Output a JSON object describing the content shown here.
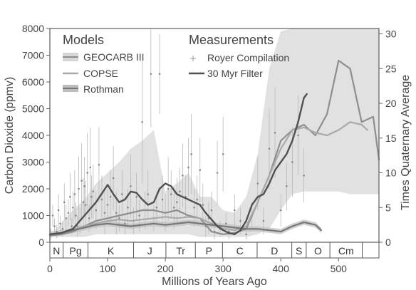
{
  "chart_data": {
    "type": "line",
    "xlabel": "Millions of Years Ago",
    "ylabel_left": "Carbon Dioxide (ppmv)",
    "ylabel_right": "Times Quaternary Average",
    "xlim": [
      0,
      570
    ],
    "ylim_left": [
      0,
      8000
    ],
    "ylim_right": [
      0,
      30.77
    ],
    "xticks": [
      0,
      100,
      200,
      300,
      400,
      500
    ],
    "yticks_left": [
      0,
      1000,
      2000,
      3000,
      4000,
      5000,
      6000,
      7000,
      8000
    ],
    "yticks_right": [
      0,
      5,
      10,
      15,
      20,
      25,
      30
    ],
    "grid": false,
    "legend": {
      "models_title": "Models",
      "measurements_title": "Measurements",
      "placement": "top-left"
    },
    "periods": [
      {
        "label": "N",
        "start": 0,
        "end": 23
      },
      {
        "label": "Pg",
        "start": 23,
        "end": 66
      },
      {
        "label": "K",
        "start": 66,
        "end": 145
      },
      {
        "label": "J",
        "start": 145,
        "end": 201
      },
      {
        "label": "Tr",
        "start": 201,
        "end": 252
      },
      {
        "label": "P",
        "start": 252,
        "end": 299
      },
      {
        "label": "C",
        "start": 299,
        "end": 359
      },
      {
        "label": "D",
        "start": 359,
        "end": 419
      },
      {
        "label": "S",
        "start": 419,
        "end": 444
      },
      {
        "label": "O",
        "start": 444,
        "end": 485
      },
      {
        "label": "Cm",
        "start": 485,
        "end": 541
      }
    ],
    "series": [
      {
        "name": "GEOCARB III",
        "color": "#8e8e8e",
        "kind": "band-line",
        "x": [
          0,
          20,
          40,
          60,
          80,
          100,
          120,
          140,
          160,
          180,
          200,
          220,
          240,
          260,
          280,
          300,
          320,
          340,
          360,
          380,
          400,
          420,
          440,
          460,
          480,
          500,
          520,
          540,
          560,
          570
        ],
        "values": [
          250,
          300,
          400,
          600,
          800,
          900,
          1000,
          1100,
          1200,
          1200,
          1100,
          1200,
          1000,
          900,
          400,
          300,
          350,
          500,
          1500,
          2500,
          3800,
          4200,
          4400,
          4000,
          4800,
          6800,
          6500,
          4500,
          4700,
          3100
        ],
        "upper": [
          300,
          700,
          1200,
          1600,
          2200,
          2600,
          3000,
          3500,
          3800,
          4200,
          1900,
          2200,
          2600,
          1700,
          1700,
          1200,
          1100,
          1700,
          3300,
          6500,
          7900,
          8000,
          8000,
          8000,
          8000,
          8000,
          8000,
          8000,
          8000,
          8000
        ],
        "lower": [
          200,
          200,
          200,
          200,
          300,
          300,
          300,
          300,
          300,
          300,
          300,
          300,
          300,
          200,
          200,
          200,
          200,
          200,
          300,
          500,
          1200,
          1800,
          1900,
          1900,
          1900,
          1900,
          1800,
          1800,
          1800,
          1800
        ]
      },
      {
        "name": "COPSE",
        "color": "#a9a9a9",
        "kind": "line",
        "x": [
          0,
          20,
          40,
          60,
          80,
          100,
          120,
          140,
          160,
          180,
          200,
          220,
          240,
          260,
          280,
          300,
          320,
          340,
          360,
          380,
          400,
          420,
          440,
          460,
          480,
          500,
          520,
          540,
          550
        ],
        "values": [
          300,
          350,
          450,
          600,
          700,
          800,
          850,
          800,
          850,
          900,
          950,
          900,
          950,
          900,
          700,
          500,
          450,
          600,
          1500,
          2500,
          3500,
          4200,
          4300,
          4100,
          4000,
          4200,
          4500,
          4400,
          4200
        ]
      },
      {
        "name": "Rothman",
        "color": "#777777",
        "kind": "band-line",
        "x": [
          0,
          20,
          40,
          60,
          80,
          100,
          120,
          140,
          160,
          180,
          200,
          220,
          240,
          260,
          280,
          300,
          320,
          340,
          360,
          380,
          400,
          420,
          440,
          460,
          470
        ],
        "values": [
          300,
          350,
          450,
          550,
          650,
          700,
          650,
          600,
          650,
          700,
          650,
          700,
          750,
          700,
          650,
          600,
          550,
          500,
          500,
          450,
          400,
          600,
          750,
          650,
          450
        ],
        "upper": [
          400,
          450,
          550,
          650,
          750,
          800,
          750,
          700,
          750,
          800,
          750,
          800,
          850,
          800,
          750,
          700,
          650,
          600,
          600,
          550,
          500,
          700,
          850,
          750,
          550
        ],
        "lower": [
          200,
          250,
          350,
          450,
          550,
          600,
          550,
          500,
          550,
          600,
          550,
          600,
          650,
          600,
          550,
          500,
          450,
          400,
          400,
          350,
          300,
          500,
          650,
          550,
          350
        ]
      },
      {
        "name": "30 Myr Filter",
        "color": "#505050",
        "kind": "line",
        "x": [
          0,
          20,
          40,
          60,
          80,
          100,
          110,
          120,
          130,
          140,
          150,
          160,
          170,
          180,
          190,
          200,
          210,
          220,
          230,
          240,
          250,
          260,
          270,
          280,
          290,
          300,
          310,
          320,
          330,
          340,
          350,
          360,
          370,
          380,
          390,
          400,
          410,
          420,
          430,
          440,
          445
        ],
        "values": [
          300,
          350,
          500,
          1000,
          1500,
          2150,
          1800,
          1500,
          1600,
          1900,
          1850,
          1600,
          1400,
          1500,
          2000,
          2200,
          2100,
          1800,
          1700,
          1600,
          1500,
          1400,
          1100,
          850,
          600,
          450,
          350,
          300,
          450,
          800,
          1400,
          1700,
          1800,
          2200,
          2700,
          3000,
          3300,
          3800,
          4500,
          5400,
          5550
        ]
      }
    ],
    "measurements": {
      "name": "Royer Compilation",
      "color": "#888888",
      "points": [
        [
          2,
          300,
          200
        ],
        [
          5,
          1000,
          400
        ],
        [
          8,
          600,
          300
        ],
        [
          12,
          400,
          250
        ],
        [
          15,
          1200,
          600
        ],
        [
          18,
          700,
          300
        ],
        [
          22,
          500,
          300
        ],
        [
          25,
          1500,
          700
        ],
        [
          28,
          900,
          500
        ],
        [
          32,
          1100,
          500
        ],
        [
          35,
          1700,
          900
        ],
        [
          38,
          600,
          300
        ],
        [
          40,
          1300,
          600
        ],
        [
          43,
          1800,
          900
        ],
        [
          45,
          1000,
          500
        ],
        [
          48,
          600,
          400
        ],
        [
          50,
          2000,
          1200
        ],
        [
          52,
          800,
          500
        ],
        [
          55,
          2300,
          1400
        ],
        [
          58,
          1500,
          900
        ],
        [
          60,
          2100,
          1100
        ],
        [
          62,
          1400,
          900
        ],
        [
          65,
          2600,
          1500
        ],
        [
          68,
          900,
          500
        ],
        [
          70,
          2800,
          1500
        ],
        [
          72,
          1700,
          800
        ],
        [
          75,
          1900,
          1000
        ],
        [
          80,
          1200,
          700
        ],
        [
          85,
          2900,
          1400
        ],
        [
          90,
          1600,
          900
        ],
        [
          95,
          1100,
          800
        ],
        [
          100,
          1400,
          600
        ],
        [
          105,
          1700,
          1000
        ],
        [
          110,
          2400,
          1200
        ],
        [
          115,
          1100,
          800
        ],
        [
          120,
          900,
          500
        ],
        [
          125,
          1800,
          900
        ],
        [
          130,
          700,
          400
        ],
        [
          135,
          1300,
          700
        ],
        [
          140,
          2100,
          1200
        ],
        [
          145,
          800,
          500
        ],
        [
          150,
          1700,
          900
        ],
        [
          155,
          1000,
          600
        ],
        [
          160,
          4500,
          2300
        ],
        [
          165,
          1200,
          700
        ],
        [
          170,
          1800,
          900
        ],
        [
          175,
          6300,
          2000
        ],
        [
          180,
          900,
          500
        ],
        [
          185,
          1300,
          600
        ],
        [
          190,
          6300,
          1500
        ],
        [
          195,
          1600,
          900
        ],
        [
          200,
          1100,
          700
        ],
        [
          205,
          2000,
          1200
        ],
        [
          210,
          1800,
          900
        ],
        [
          215,
          1300,
          800
        ],
        [
          220,
          1500,
          900
        ],
        [
          225,
          1900,
          900
        ],
        [
          230,
          2500,
          1200
        ],
        [
          235,
          1700,
          800
        ],
        [
          240,
          2800,
          1100
        ],
        [
          245,
          3300,
          1500
        ],
        [
          250,
          1300,
          700
        ],
        [
          255,
          1600,
          900
        ],
        [
          260,
          2700,
          1200
        ],
        [
          265,
          1400,
          800
        ],
        [
          270,
          600,
          400
        ],
        [
          275,
          900,
          600
        ],
        [
          280,
          1200,
          700
        ],
        [
          285,
          400,
          300
        ],
        [
          290,
          2600,
          1200
        ],
        [
          295,
          500,
          300
        ],
        [
          300,
          3300,
          1400
        ],
        [
          305,
          700,
          400
        ],
        [
          310,
          400,
          300
        ],
        [
          320,
          1200,
          600
        ],
        [
          330,
          800,
          500
        ],
        [
          340,
          300,
          200
        ],
        [
          350,
          1000,
          500
        ],
        [
          360,
          2200,
          1000
        ],
        [
          370,
          800,
          500
        ],
        [
          380,
          3500,
          1500
        ],
        [
          390,
          4100,
          1700
        ],
        [
          400,
          1200,
          600
        ],
        [
          410,
          2100,
          900
        ],
        [
          420,
          3000,
          1300
        ],
        [
          430,
          4000,
          1500
        ],
        [
          440,
          2500,
          1000
        ]
      ]
    }
  }
}
